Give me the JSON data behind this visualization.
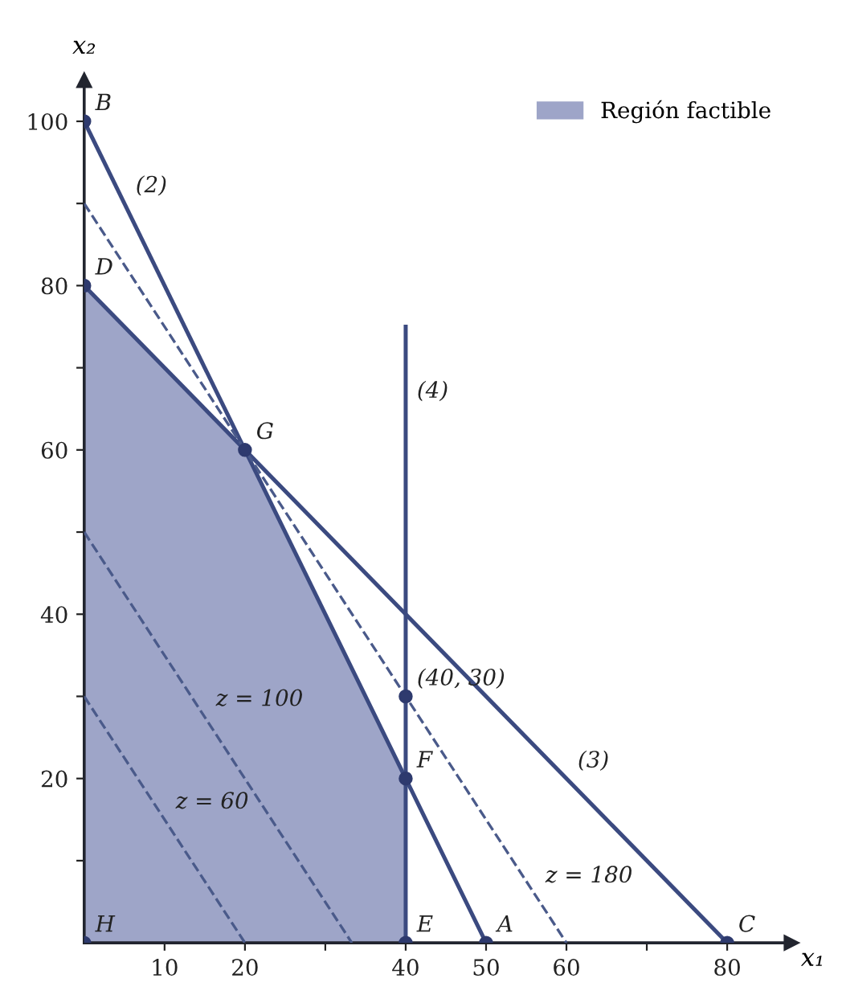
{
  "chart_data": {
    "type": "line",
    "xlabel": "x₁",
    "ylabel": "x₂",
    "xlim": [
      0,
      88
    ],
    "ylim": [
      0,
      105
    ],
    "xticks": [
      10,
      20,
      {
        "value": 30,
        "label": null
      },
      40,
      50,
      60,
      {
        "value": 70,
        "label": null
      },
      80
    ],
    "yticks": [
      {
        "value": 10,
        "label": null
      },
      20,
      {
        "value": 30,
        "label": null
      },
      40,
      {
        "value": 50,
        "label": null
      },
      60,
      {
        "value": 70,
        "label": null
      },
      80,
      {
        "value": 90,
        "label": null
      },
      100
    ],
    "grid": false,
    "legend": "top right",
    "series": [
      {
        "name": "Región factible",
        "type": "area",
        "color": "#9ea5c8",
        "x": [
          0,
          20,
          40
        ],
        "values": [
          80,
          60,
          20
        ]
      },
      {
        "color": "#3b4a80",
        "line_style": "solid",
        "x": [
          0,
          50
        ],
        "values": [
          100,
          0
        ]
      },
      {
        "color": "#3b4a80",
        "line_style": "solid",
        "x": [
          0,
          80
        ],
        "values": [
          80,
          0
        ]
      },
      {
        "color": "#3b4a80",
        "line_style": "solid",
        "x": [
          40,
          40
        ],
        "values": [
          0,
          75
        ]
      },
      {
        "color": "#4a5a8a",
        "line_style": "dashed",
        "x": [
          0,
          20
        ],
        "values": [
          30,
          0
        ]
      },
      {
        "color": "#4a5a8a",
        "line_style": "dashed",
        "x": [
          0,
          33.3
        ],
        "values": [
          50,
          0
        ]
      },
      {
        "color": "#4a5a8a",
        "line_style": "dashed",
        "x": [
          0,
          60
        ],
        "values": [
          90,
          0
        ]
      },
      {
        "type": "scatter",
        "color": "#2e3a6e",
        "marker": "circle",
        "x": [
          0,
          0,
          0,
          20,
          40,
          40,
          50,
          80,
          40
        ],
        "values": [
          0,
          80,
          100,
          60,
          20,
          0,
          0,
          0,
          30
        ]
      }
    ],
    "annotations": [
      {
        "text": "H",
        "x": 0,
        "y": 0
      },
      {
        "text": "D",
        "x": 0,
        "y": 80
      },
      {
        "text": "B",
        "x": 0,
        "y": 100
      },
      {
        "text": "G",
        "x": 20,
        "y": 60
      },
      {
        "text": "F",
        "x": 40,
        "y": 20
      },
      {
        "text": "E",
        "x": 40,
        "y": 0
      },
      {
        "text": "A",
        "x": 50,
        "y": 0
      },
      {
        "text": "C",
        "x": 80,
        "y": 0
      },
      {
        "text": "(40, 30)",
        "x": 40,
        "y": 30
      },
      {
        "text": "(2)",
        "x": 5,
        "y": 90
      },
      {
        "text": "(3)",
        "x": 60,
        "y": 20
      },
      {
        "text": "(4)",
        "x": 40,
        "y": 65
      },
      {
        "text": "z = 60",
        "x": 10,
        "y": 15
      },
      {
        "text": "z = 100",
        "x": 15,
        "y": 27.5
      },
      {
        "text": "z = 180",
        "x": 56,
        "y": 6
      }
    ]
  }
}
